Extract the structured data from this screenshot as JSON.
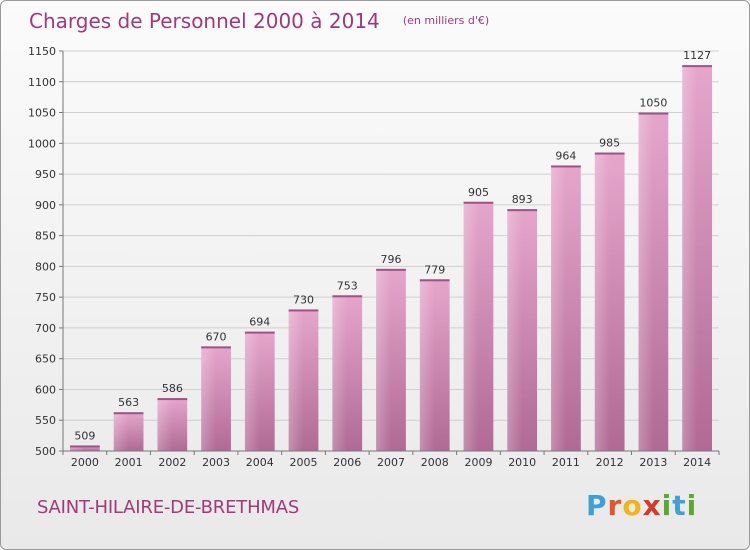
{
  "header": {
    "title": "Charges de Personnel 2000 à 2014",
    "subtitle": "(en milliers d'€)"
  },
  "footer": {
    "city": "SAINT-HILAIRE-DE-BRETHMAS",
    "logo_letters": [
      "P",
      "r",
      "o",
      "x",
      "i",
      "t",
      "i"
    ],
    "logo_colors": [
      "#3fa0d8",
      "#e2562a",
      "#f2b418",
      "#d23b2a",
      "#5aa832",
      "#3fa0d8",
      "#5aa832"
    ]
  },
  "colors": {
    "bar_top": "#e6a6cc",
    "bar_bottom": "#b06a94",
    "title": "#a03a78"
  },
  "chart_data": {
    "type": "bar",
    "title": "Charges de Personnel 2000 à 2014",
    "subtitle": "(en milliers d'€)",
    "categories": [
      "2000",
      "2001",
      "2002",
      "2003",
      "2004",
      "2005",
      "2006",
      "2007",
      "2008",
      "2009",
      "2010",
      "2011",
      "2012",
      "2013",
      "2014"
    ],
    "values": [
      509,
      563,
      586,
      670,
      694,
      730,
      753,
      796,
      779,
      905,
      893,
      964,
      985,
      1050,
      1127
    ],
    "ylim": [
      500,
      1150
    ],
    "yticks": [
      500,
      550,
      600,
      650,
      700,
      750,
      800,
      850,
      900,
      950,
      1000,
      1050,
      1100,
      1150
    ],
    "grid": true,
    "legend": "none"
  }
}
